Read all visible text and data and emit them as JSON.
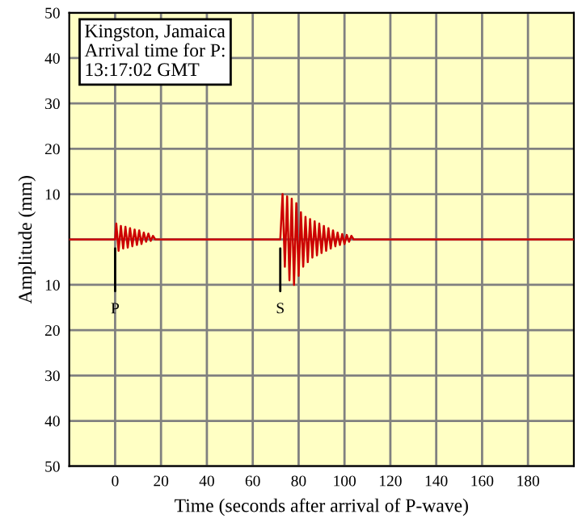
{
  "chart_data": {
    "type": "line",
    "xlabel": "Time (seconds after arrival of P-wave)",
    "ylabel": "Amplitude (mm)",
    "xlim": [
      -20,
      200
    ],
    "xticks": [
      0,
      20,
      40,
      60,
      80,
      100,
      120,
      140,
      160,
      180
    ],
    "ylim": [
      -50,
      50
    ],
    "yticks": [
      {
        "value": -50,
        "label": "50"
      },
      {
        "value": -40,
        "label": "40"
      },
      {
        "value": -30,
        "label": "30"
      },
      {
        "value": -20,
        "label": "20"
      },
      {
        "value": -10,
        "label": "10"
      },
      {
        "value": 0,
        "label": null
      },
      10,
      20,
      30,
      40,
      50
    ],
    "grid": true,
    "series": [
      {
        "color": "#cc0000",
        "x": [
          -20,
          0,
          0.5,
          1.5,
          2.5,
          3.5,
          4.5,
          5.5,
          6.5,
          7.5,
          8.5,
          9.5,
          10.5,
          11.5,
          12.5,
          13.5,
          14.5,
          15.5,
          16.5,
          17.5,
          72,
          73,
          74,
          75,
          76,
          77,
          78,
          79,
          80,
          81,
          82,
          83,
          84,
          85,
          86,
          87,
          88,
          89,
          90,
          91,
          92,
          93,
          94,
          95,
          96,
          97,
          98,
          99,
          100,
          101,
          102,
          103,
          104,
          200
        ],
        "values": [
          0,
          0,
          3.5,
          -2.5,
          3,
          -2,
          2.8,
          -1.8,
          2.5,
          -1.5,
          2.2,
          -1.2,
          2,
          -1,
          1.5,
          -0.5,
          1.3,
          -0.3,
          0.8,
          0,
          0,
          10,
          -6,
          9.5,
          -9,
          9,
          -10,
          8,
          -8,
          6,
          -6,
          5,
          -5,
          4.5,
          -4,
          4,
          -3.5,
          3.5,
          -3,
          3,
          -2.5,
          2.5,
          -2,
          2,
          -1.5,
          1.5,
          -1.2,
          1.2,
          -1,
          1,
          -0.5,
          0.8,
          0,
          0
        ]
      }
    ],
    "annotations": [
      "Kingston, Jamaica\nArrival time for P:\n13:17:02 GMT",
      {
        "text": "P",
        "x": 0,
        "y": -2
      },
      {
        "text": "S",
        "x": 72,
        "y": -2
      }
    ]
  }
}
